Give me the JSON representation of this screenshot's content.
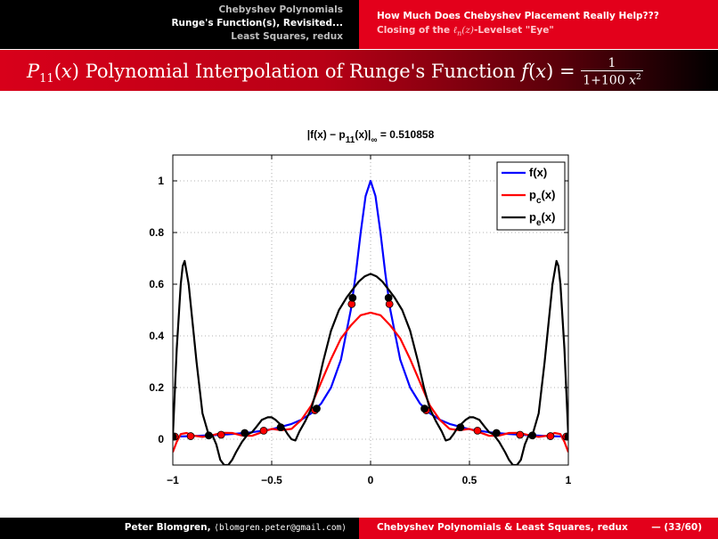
{
  "header": {
    "nav": [
      {
        "label": "Chebyshev Polynomials",
        "active": false
      },
      {
        "label": "Runge's Function(s), Revisited...",
        "active": true
      },
      {
        "label": "Least Squares, redux",
        "active": false
      }
    ],
    "section_title": "How Much Does Chebyshev Placement Really Help???",
    "subsection_title": "Closing of the ℓ_n(z)-Levelset \"Eye\""
  },
  "frame_title": "P₁₁(x) Polynomial Interpolation of Runge's Function f(x) = 1/(1+100x²)",
  "footer": {
    "author": "Peter Blomgren,",
    "email": "⟨blomgren.peter@gmail.com⟩",
    "course": "Chebyshev Polynomials & Least Squares, redux",
    "page": "— (33/60)"
  },
  "colors": {
    "header_left": "#000000",
    "header_right": "#e3001b",
    "f": "#0000ff",
    "pc": "#ff0000",
    "pe": "#000000"
  },
  "chart_data": {
    "type": "line",
    "title": "|f(x) − p11(x)|∞ = 0.510858",
    "xlim": [
      -1,
      1
    ],
    "ylim": [
      -0.1,
      1.1
    ],
    "xticks": [
      -1,
      -0.5,
      0,
      0.5,
      1
    ],
    "xtick_labels": [
      "−1",
      "−0.5",
      "0",
      "0.5",
      "1"
    ],
    "yticks": [
      0,
      0.2,
      0.4,
      0.6,
      0.8,
      1
    ],
    "ytick_labels": [
      "0",
      "0.2",
      "0.4",
      "0.6",
      "0.8",
      "1"
    ],
    "grid": true,
    "legend_position": "top-right",
    "series": [
      {
        "name": "f(x)",
        "color": "#0000ff",
        "x": [
          -1,
          -0.9,
          -0.8,
          -0.7,
          -0.6,
          -0.5,
          -0.4,
          -0.35,
          -0.3,
          -0.25,
          -0.2,
          -0.15,
          -0.1,
          -0.075,
          -0.05,
          -0.025,
          0,
          0.025,
          0.05,
          0.075,
          0.1,
          0.15,
          0.2,
          0.25,
          0.3,
          0.35,
          0.4,
          0.5,
          0.6,
          0.7,
          0.8,
          0.9,
          1
        ],
        "y": [
          0.0099,
          0.0122,
          0.0154,
          0.02,
          0.027,
          0.0385,
          0.0588,
          0.0755,
          0.1,
          0.1379,
          0.2,
          0.3077,
          0.5,
          0.64,
          0.8,
          0.9412,
          1,
          0.9412,
          0.8,
          0.64,
          0.5,
          0.3077,
          0.2,
          0.1379,
          0.1,
          0.0755,
          0.0588,
          0.0385,
          0.027,
          0.02,
          0.0154,
          0.0122,
          0.0099
        ]
      },
      {
        "name": "pc(x)",
        "color": "#ff0000",
        "x": [
          -1,
          -0.98,
          -0.96,
          -0.93,
          -0.9,
          -0.85,
          -0.8,
          -0.75,
          -0.7,
          -0.65,
          -0.6,
          -0.55,
          -0.5,
          -0.45,
          -0.4,
          -0.35,
          -0.3,
          -0.25,
          -0.2,
          -0.15,
          -0.1,
          -0.05,
          0,
          0.05,
          0.1,
          0.15,
          0.2,
          0.25,
          0.3,
          0.35,
          0.4,
          0.45,
          0.5,
          0.55,
          0.6,
          0.65,
          0.7,
          0.75,
          0.8,
          0.85,
          0.9,
          0.93,
          0.96,
          0.98,
          1
        ],
        "y": [
          -0.05,
          -0.01,
          0.02,
          0.024,
          0.014,
          0.009,
          0.016,
          0.025,
          0.024,
          0.014,
          0.013,
          0.027,
          0.04,
          0.035,
          0.04,
          0.075,
          0.13,
          0.22,
          0.31,
          0.39,
          0.44,
          0.48,
          0.49,
          0.48,
          0.44,
          0.39,
          0.31,
          0.22,
          0.13,
          0.075,
          0.04,
          0.035,
          0.04,
          0.027,
          0.013,
          0.014,
          0.024,
          0.025,
          0.016,
          0.009,
          0.014,
          0.024,
          0.02,
          -0.01,
          -0.05
        ]
      },
      {
        "name": "pe(x)",
        "color": "#000000",
        "x": [
          -1,
          -0.98,
          -0.96,
          -0.95,
          -0.94,
          -0.92,
          -0.9,
          -0.88,
          -0.85,
          -0.82,
          -0.8,
          -0.78,
          -0.76,
          -0.74,
          -0.72,
          -0.7,
          -0.68,
          -0.65,
          -0.62,
          -0.6,
          -0.58,
          -0.55,
          -0.52,
          -0.5,
          -0.48,
          -0.46,
          -0.44,
          -0.42,
          -0.4,
          -0.38,
          -0.36,
          -0.33,
          -0.3,
          -0.27,
          -0.24,
          -0.2,
          -0.16,
          -0.12,
          -0.09,
          -0.06,
          -0.03,
          0,
          0.03,
          0.06,
          0.09,
          0.12,
          0.16,
          0.2,
          0.24,
          0.27,
          0.3,
          0.33,
          0.36,
          0.38,
          0.4,
          0.42,
          0.44,
          0.46,
          0.48,
          0.5,
          0.52,
          0.55,
          0.58,
          0.6,
          0.62,
          0.65,
          0.68,
          0.7,
          0.72,
          0.74,
          0.76,
          0.78,
          0.8,
          0.82,
          0.85,
          0.88,
          0.9,
          0.92,
          0.94,
          0.95,
          0.96,
          0.98,
          1
        ],
        "y": [
          0.0099,
          0.35,
          0.6,
          0.67,
          0.69,
          0.6,
          0.45,
          0.3,
          0.1,
          0.02,
          0.0154,
          -0.02,
          -0.08,
          -0.1,
          -0.1,
          -0.08,
          -0.05,
          -0.01,
          0.02,
          0.027,
          0.045,
          0.075,
          0.085,
          0.085,
          0.075,
          0.06,
          0.045,
          0.02,
          0.0,
          -0.005,
          0.03,
          0.07,
          0.118,
          0.2,
          0.3,
          0.42,
          0.5,
          0.55,
          0.58,
          0.61,
          0.63,
          0.64,
          0.63,
          0.61,
          0.58,
          0.55,
          0.5,
          0.42,
          0.3,
          0.2,
          0.118,
          0.07,
          0.03,
          -0.005,
          0.0,
          0.02,
          0.045,
          0.06,
          0.075,
          0.085,
          0.085,
          0.075,
          0.045,
          0.027,
          0.02,
          -0.01,
          -0.05,
          -0.08,
          -0.1,
          -0.1,
          -0.08,
          -0.02,
          0.0154,
          0.02,
          0.1,
          0.3,
          0.45,
          0.6,
          0.69,
          0.67,
          0.6,
          0.35,
          0.0099
        ]
      }
    ],
    "node_sets": [
      {
        "name": "pc nodes",
        "color": "#ff0000",
        "x": [
          -0.9898,
          -0.9096,
          -0.7557,
          -0.5406,
          -0.2817,
          -0.0955,
          0.0955,
          0.2817,
          0.5406,
          0.7557,
          0.9096,
          0.9898
        ],
        "y": [
          0.0101,
          0.0119,
          0.0172,
          0.0331,
          0.1119,
          0.5231,
          0.5231,
          0.1119,
          0.0331,
          0.0172,
          0.0119,
          0.0101
        ]
      },
      {
        "name": "pe nodes",
        "color": "#000000",
        "x": [
          -1,
          -0.8182,
          -0.6364,
          -0.4545,
          -0.2727,
          -0.0909,
          0.0909,
          0.2727,
          0.4545,
          0.6364,
          0.8182,
          1
        ],
        "y": [
          0.0099,
          0.0147,
          0.0241,
          0.0462,
          0.1186,
          0.5475,
          0.5475,
          0.1186,
          0.0462,
          0.0241,
          0.0147,
          0.0099
        ]
      }
    ],
    "legend": [
      {
        "label": "f(x)",
        "color": "#0000ff"
      },
      {
        "label": "pc(x)",
        "color": "#ff0000"
      },
      {
        "label": "pe(x)",
        "color": "#000000"
      }
    ]
  }
}
